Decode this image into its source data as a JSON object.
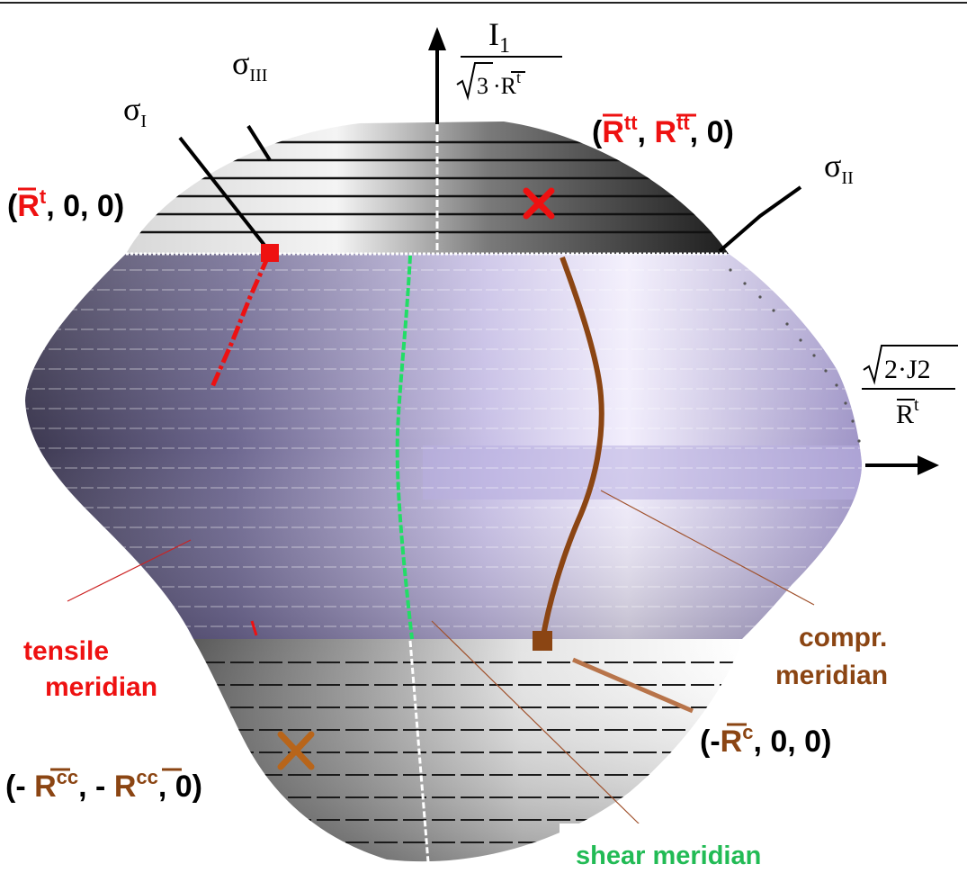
{
  "axes": {
    "vertical": {
      "numerator": "I",
      "numerator_sub": "1",
      "denominator_root": "3",
      "denominator_rest": "·R",
      "denominator_sup": "t"
    },
    "horizontal": {
      "numerator_root": "2·J2",
      "denominator": "R",
      "denominator_sup": "t"
    }
  },
  "principal_axes": {
    "sigma_1": {
      "symbol": "σ",
      "sub": "I"
    },
    "sigma_2": {
      "symbol": "σ",
      "sub": "II"
    },
    "sigma_3": {
      "symbol": "σ",
      "sub": "III"
    }
  },
  "points": {
    "tensile": {
      "open": "(",
      "bar": "R",
      "sup": "t",
      "rest": ", 0, 0)"
    },
    "biaxial_tension": {
      "open": "(",
      "bar1": "R",
      "sup1": "tt",
      "sep1": ", ",
      "bar2": "R",
      "sup2": "tt",
      "rest": ", 0)"
    },
    "compression": {
      "open": "(-",
      "bar": "R",
      "sup": "c",
      "rest": ", 0, 0)"
    },
    "biaxial_compression": {
      "open": "(- ",
      "bar1": "R",
      "sup1": "cc",
      "sep1": ", - ",
      "bar2": "R",
      "sup2": "cc",
      "rest": ", 0)"
    }
  },
  "meridians": {
    "tensile_line1": "tensile",
    "tensile_line2": "meridian",
    "compr_line1": "compr.",
    "compr_line2": "meridian",
    "shear": "shear meridian"
  },
  "colors": {
    "tensile": "#ee1111",
    "compr": "#8b4513",
    "shear": "#22dd66",
    "surface_mid": "#a89ec8",
    "cap": "#5a5a5a"
  }
}
